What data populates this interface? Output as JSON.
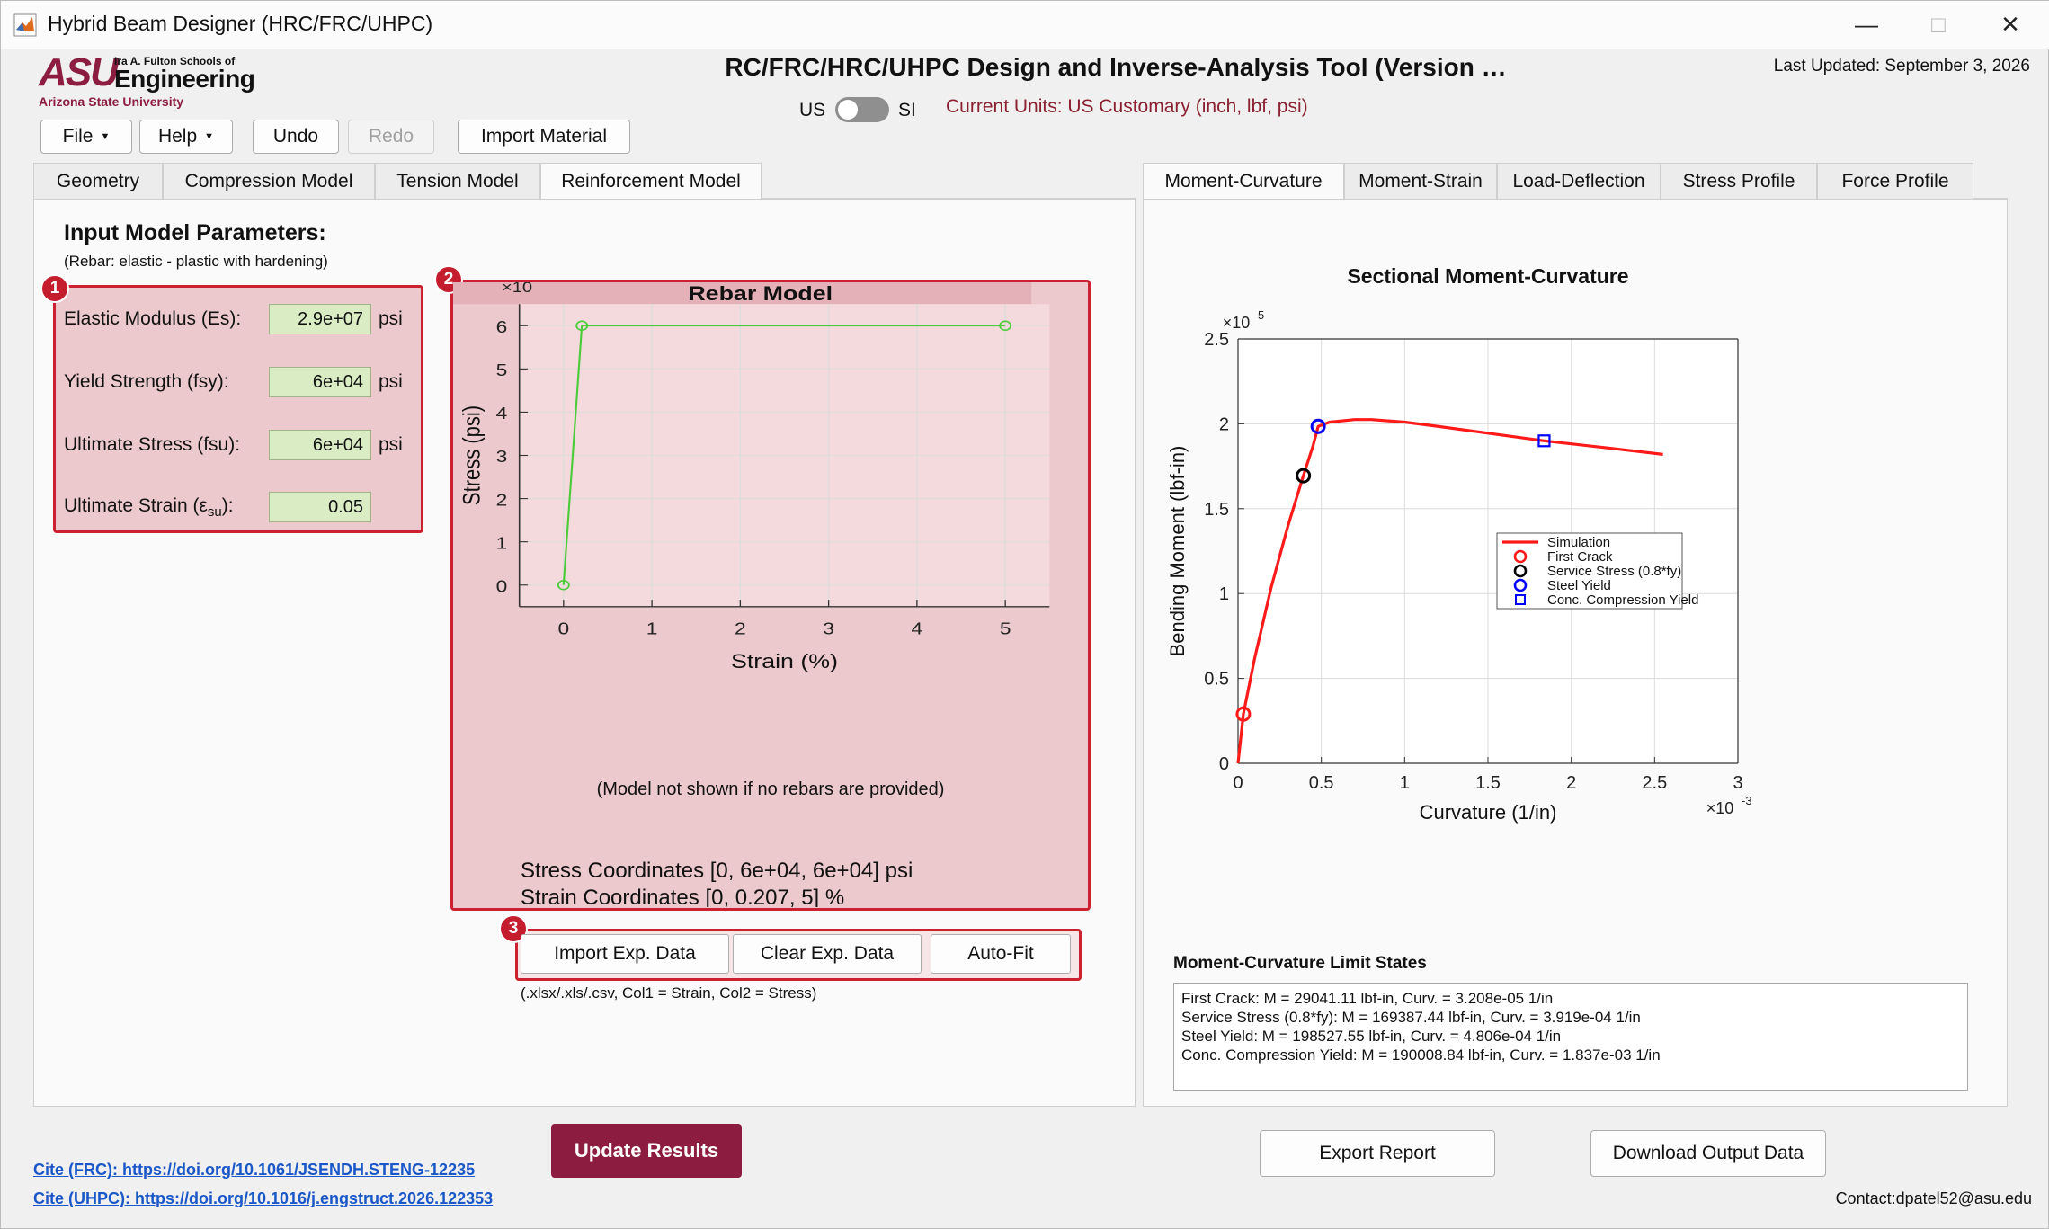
{
  "window": {
    "title": "Hybrid Beam Designer (HRC/FRC/UHPC)"
  },
  "logo": {
    "line1": "Ira A. Fulton Schools of",
    "line2": "Engineering",
    "line3": "Arizona State University"
  },
  "header": {
    "title": "RC/FRC/HRC/UHPC Design and Inverse-Analysis Tool (Version …",
    "last_updated": "Last Updated: September 3, 2026",
    "us_label": "US",
    "si_label": "SI",
    "current_units": "Current Units: US Customary (inch, lbf, psi)"
  },
  "toolbar": {
    "file": "File",
    "help": "Help",
    "undo": "Undo",
    "redo": "Redo",
    "import_material": "Import Material"
  },
  "left_tabs": [
    "Geometry",
    "Compression Model",
    "Tension Model",
    "Reinforcement Model"
  ],
  "right_tabs": [
    "Moment-Curvature",
    "Moment-Strain",
    "Load-Deflection",
    "Stress Profile",
    "Force Profile"
  ],
  "params": {
    "title": "Input Model Parameters:",
    "subtitle": "(Rebar: elastic - plastic with hardening)",
    "badge1": "1",
    "badge2": "2",
    "badge3": "3",
    "rows": [
      {
        "label": "Elastic Modulus (Es):",
        "value": "2.9e+07",
        "unit": "psi"
      },
      {
        "label": "Yield Strength (fsy):",
        "value": "6e+04",
        "unit": "psi"
      },
      {
        "label": "Ultimate Stress (fsu):",
        "value": "6e+04",
        "unit": "psi"
      },
      {
        "label_main": "Ultimate Strain (ε",
        "label_sub": "su",
        "label_end": "):",
        "value": "0.05",
        "unit": ""
      }
    ]
  },
  "rebar": {
    "note": "(Model not shown if no rebars are provided)",
    "stress_coords": "Stress Coordinates [0, 6e+04, 6e+04] psi",
    "strain_coords": "Strain Coordinates [0, 0.207, 5] %",
    "import_btn": "Import Exp. Data",
    "clear_btn": "Clear Exp. Data",
    "autofit_btn": "Auto-Fit",
    "file_hint": "(.xlsx/.xls/.csv, Col1 = Strain, Col2 = Stress)"
  },
  "limit_states": {
    "title": "Moment-Curvature Limit States",
    "lines": [
      "First Crack: M = 29041.11 lbf-in, Curv. = 3.208e-05 1/in",
      "Service Stress (0.8*fy): M = 169387.44 lbf-in, Curv. = 3.919e-04 1/in",
      "Steel Yield: M = 198527.55 lbf-in, Curv. = 4.806e-04 1/in",
      "Conc. Compression Yield: M = 190008.84 lbf-in, Curv. = 1.837e-03 1/in"
    ]
  },
  "actions": {
    "update": "Update Results",
    "export": "Export Report",
    "download": "Download Output Data"
  },
  "footer": {
    "cite_frc": "Cite (FRC): https://doi.org/10.1061/JSENDH.STENG-12235",
    "cite_uhpc": "Cite (UHPC): https://doi.org/10.1016/j.engstruct.2026.122353",
    "contact": "Contact:dpatel52@asu.edu"
  },
  "colors": {
    "accent": "#8c1d40",
    "highlight_red": "#cc2130",
    "field_green": "#d9ecc4",
    "rebar_line": "#4ccc3a",
    "curve_red": "#ff1a1a"
  },
  "chart_data": [
    {
      "type": "line",
      "title": "Rebar Model",
      "xlabel": "Strain (%)",
      "ylabel": "Stress (psi)",
      "y_exponent_label": "×10",
      "y_exponent": "4",
      "xlim": [
        -0.5,
        5.5
      ],
      "ylim": [
        -0.5,
        6.5
      ],
      "xticks": [
        0,
        1,
        2,
        3,
        4,
        5
      ],
      "yticks": [
        0,
        1,
        2,
        3,
        4,
        5,
        6
      ],
      "grid": true,
      "series": [
        {
          "x": [
            0,
            0.207,
            5
          ],
          "y": [
            0,
            6,
            6
          ],
          "color": "#4ccc3a",
          "markers": "circle"
        }
      ]
    },
    {
      "type": "line",
      "title": "Sectional Moment-Curvature",
      "xlabel": "Curvature (1/in)",
      "ylabel": "Bending Moment (lbf-in)",
      "x_exponent_label": "×10",
      "x_exponent": "-3",
      "y_exponent_label": "×10",
      "y_exponent": "5",
      "xlim": [
        0,
        3
      ],
      "ylim": [
        0,
        2.5
      ],
      "xticks": [
        0,
        0.5,
        1,
        1.5,
        2,
        2.5,
        3
      ],
      "yticks": [
        0,
        0.5,
        1,
        1.5,
        2,
        2.5
      ],
      "grid": true,
      "legend_position": "center-right",
      "series": [
        {
          "name": "Simulation",
          "x": [
            0,
            0.032,
            0.1,
            0.2,
            0.3,
            0.392,
            0.45,
            0.481,
            0.55,
            0.7,
            0.8,
            1.0,
            1.2,
            1.5,
            1.837,
            2.2,
            2.55
          ],
          "y": [
            0,
            0.29,
            0.62,
            1.04,
            1.4,
            1.694,
            1.87,
            1.985,
            2.01,
            2.025,
            2.025,
            2.01,
            1.985,
            1.945,
            1.9,
            1.86,
            1.82
          ],
          "color": "#ff1a1a"
        }
      ],
      "points": [
        {
          "name": "First Crack",
          "x": 0.032,
          "y": 0.29,
          "marker": "circle",
          "color": "#ff1a1a"
        },
        {
          "name": "Service Stress (0.8*fy)",
          "x": 0.392,
          "y": 1.694,
          "marker": "circle",
          "color": "#000000"
        },
        {
          "name": "Steel Yield",
          "x": 0.481,
          "y": 1.985,
          "marker": "circle",
          "color": "#0000ff"
        },
        {
          "name": "Conc. Compression Yield",
          "x": 1.837,
          "y": 1.9,
          "marker": "square",
          "color": "#0000ff"
        }
      ]
    }
  ]
}
